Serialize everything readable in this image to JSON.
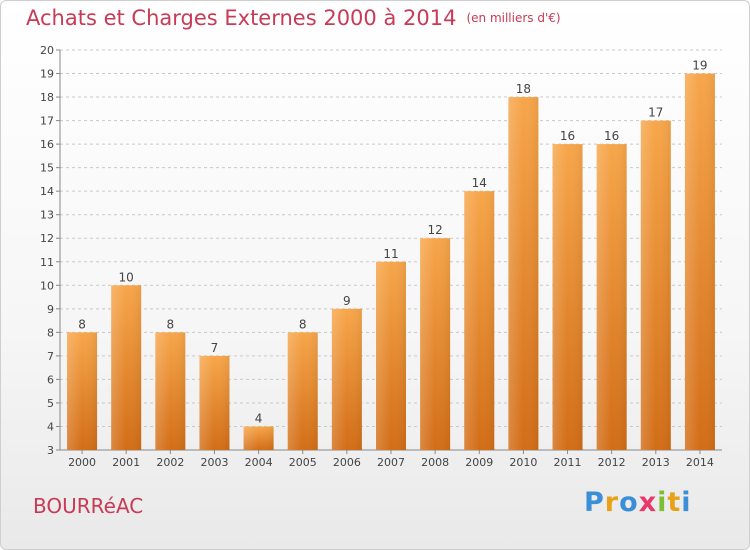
{
  "header": {
    "title": "Achats et Charges Externes 2000 à 2014",
    "unit": "(en milliers d'€)"
  },
  "town": "BOURRéAC",
  "brand": {
    "letters": [
      "P",
      "r",
      "o",
      "x",
      "i",
      "t",
      "i"
    ],
    "colors": [
      "#3a8fd6",
      "#e8a21a",
      "#3a8fd6",
      "#e83a6a",
      "#7cbf35",
      "#e8a21a",
      "#3a8fd6"
    ]
  },
  "chart_data": {
    "type": "bar",
    "categories": [
      "2000",
      "2001",
      "2002",
      "2003",
      "2004",
      "2005",
      "2006",
      "2007",
      "2008",
      "2009",
      "2010",
      "2011",
      "2012",
      "2013",
      "2014"
    ],
    "values": [
      8,
      10,
      8,
      7,
      4,
      8,
      9,
      11,
      12,
      14,
      18,
      16,
      16,
      17,
      19
    ],
    "data_labels": [
      "8",
      "10",
      "8",
      "7",
      "4",
      "8",
      "9",
      "11",
      "12",
      "14",
      "18",
      "16",
      "16",
      "17",
      "19"
    ],
    "yticks": [
      3,
      4,
      5,
      6,
      7,
      8,
      9,
      10,
      11,
      12,
      13,
      14,
      15,
      16,
      17,
      18,
      19,
      20
    ],
    "ylim": [
      3,
      20
    ],
    "grid": "horizontal-dashed",
    "bar_color": "#f0932b",
    "xlabel": "",
    "ylabel": ""
  }
}
